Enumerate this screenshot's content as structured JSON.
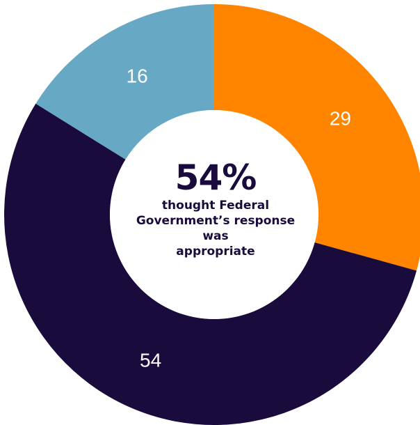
{
  "chart_data": {
    "type": "pie",
    "style": "donut",
    "categories": [
      "",
      "",
      ""
    ],
    "values": [
      29,
      54,
      16
    ],
    "colors": [
      "#ff8400",
      "#1a0b3d",
      "#67a9c5"
    ],
    "label_color": "#ffffff",
    "title": "",
    "center": {
      "headline": "54%",
      "lines": [
        "thought Federal",
        "Government’s response",
        "was",
        "appropriate"
      ]
    }
  }
}
